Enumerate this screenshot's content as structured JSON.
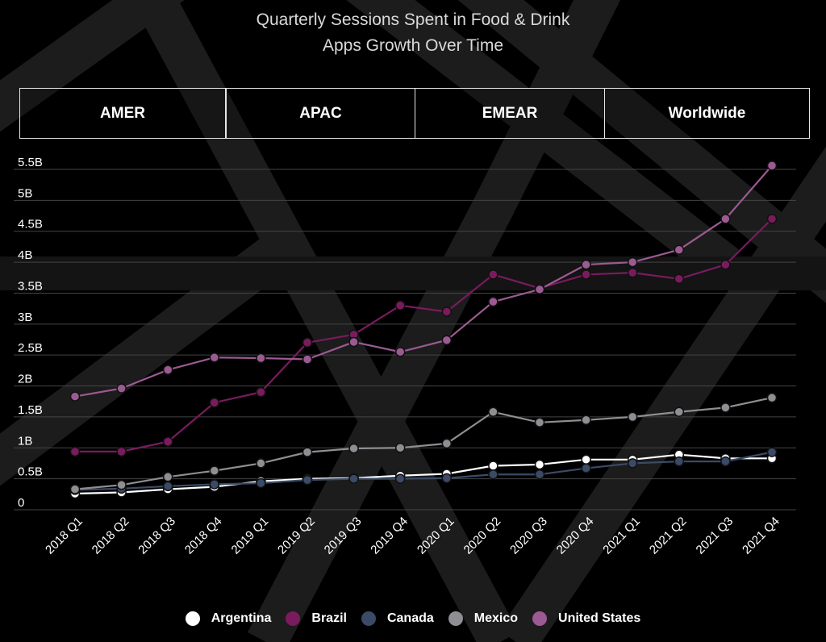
{
  "title_line1": "Quarterly Sessions Spent in Food & Drink",
  "title_line2": "Apps Growth Over Time",
  "tabs": [
    "AMER",
    "APAC",
    "EMEAR",
    "Worldwide"
  ],
  "chart_data": {
    "type": "line",
    "title": "Quarterly Sessions Spent in Food & Drink Apps Growth Over Time",
    "xlabel": "",
    "ylabel": "",
    "x": [
      "2018 Q1",
      "2018 Q2",
      "2018 Q3",
      "2018 Q4",
      "2019 Q1",
      "2019 Q2",
      "2019 Q3",
      "2019 Q4",
      "2020 Q1",
      "2020 Q2",
      "2020 Q3",
      "2020 Q4",
      "2021 Q1",
      "2021 Q2",
      "2021 Q3",
      "2021 Q4"
    ],
    "yticks": [
      0,
      0.5,
      1,
      1.5,
      2,
      2.5,
      3,
      3.5,
      4,
      4.5,
      5,
      5.5
    ],
    "ytick_labels": [
      "0",
      "0.5B",
      "1B",
      "1.5B",
      "2B",
      "2.5B",
      "3B",
      "3.5B",
      "4B",
      "4.5B",
      "5B",
      "5.5B"
    ],
    "ylim": [
      0,
      5.5
    ],
    "grid": "horizontal",
    "legend_position": "bottom",
    "series": [
      {
        "name": "Argentina",
        "color": "#ffffff",
        "values": [
          0.13,
          0.15,
          0.2,
          0.24,
          0.33,
          0.37,
          0.38,
          0.42,
          0.45,
          0.58,
          0.6,
          0.68,
          0.68,
          0.76,
          0.7,
          0.7
        ]
      },
      {
        "name": "Brazil",
        "color": "#7a1b5e",
        "values": [
          0.81,
          0.81,
          0.97,
          1.6,
          1.77,
          2.57,
          2.7,
          3.17,
          3.07,
          3.67,
          3.45,
          3.67,
          3.7,
          3.6,
          3.83,
          4.57
        ]
      },
      {
        "name": "Canada",
        "color": "#3b4a67",
        "values": [
          0.19,
          0.21,
          0.25,
          0.28,
          0.3,
          0.35,
          0.37,
          0.37,
          0.38,
          0.44,
          0.44,
          0.54,
          0.62,
          0.65,
          0.65,
          0.8
        ]
      },
      {
        "name": "Mexico",
        "color": "#8e8e93",
        "values": [
          0.2,
          0.27,
          0.4,
          0.5,
          0.62,
          0.8,
          0.86,
          0.87,
          0.94,
          1.45,
          1.28,
          1.32,
          1.37,
          1.45,
          1.52,
          1.68
        ]
      },
      {
        "name": "United States",
        "color": "#9b5a91",
        "values": [
          1.7,
          1.83,
          2.13,
          2.33,
          2.32,
          2.3,
          2.58,
          2.42,
          2.61,
          3.23,
          3.43,
          3.83,
          3.87,
          4.07,
          4.57,
          5.43
        ]
      }
    ]
  }
}
